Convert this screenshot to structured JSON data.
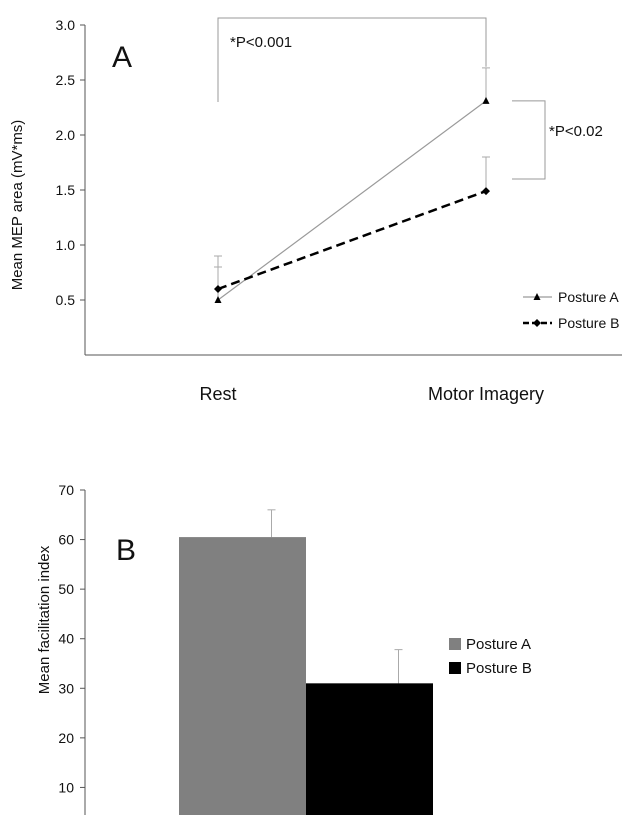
{
  "chart_data": [
    {
      "type": "line",
      "panel_label": "A",
      "ylabel": "Mean MEP area (mV*ms)",
      "categories": [
        "Rest",
        "Motor Imagery"
      ],
      "ylim": [
        0,
        3.0
      ],
      "yticks": [
        "0.5",
        "1.0",
        "1.5",
        "2.0",
        "2.5",
        "3.0"
      ],
      "series": [
        {
          "name": "Posture A",
          "values": [
            0.5,
            2.31
          ],
          "error": [
            0.4,
            0.3
          ],
          "color": "#9a9a9a",
          "style": "solid",
          "marker": "triangle"
        },
        {
          "name": "Posture B",
          "values": [
            0.6,
            1.49
          ],
          "error": [
            0.2,
            0.31
          ],
          "color": "#000000",
          "style": "dashed",
          "marker": "diamond"
        }
      ],
      "annotations": [
        {
          "text": "*P<0.001"
        },
        {
          "text": "*P<0.02"
        }
      ],
      "legend_position": "right"
    },
    {
      "type": "bar",
      "panel_label": "B",
      "ylabel": "Mean facilitation index",
      "ylim": [
        0,
        70
      ],
      "yticks": [
        "10",
        "20",
        "30",
        "40",
        "50",
        "60",
        "70"
      ],
      "series": [
        {
          "name": "Posture A",
          "values": [
            60.5
          ],
          "error": [
            5.5
          ],
          "color": "#808080"
        },
        {
          "name": "Posture B",
          "values": [
            31
          ],
          "error": [
            6.8
          ],
          "color": "#000000"
        }
      ],
      "legend_position": "right"
    }
  ]
}
